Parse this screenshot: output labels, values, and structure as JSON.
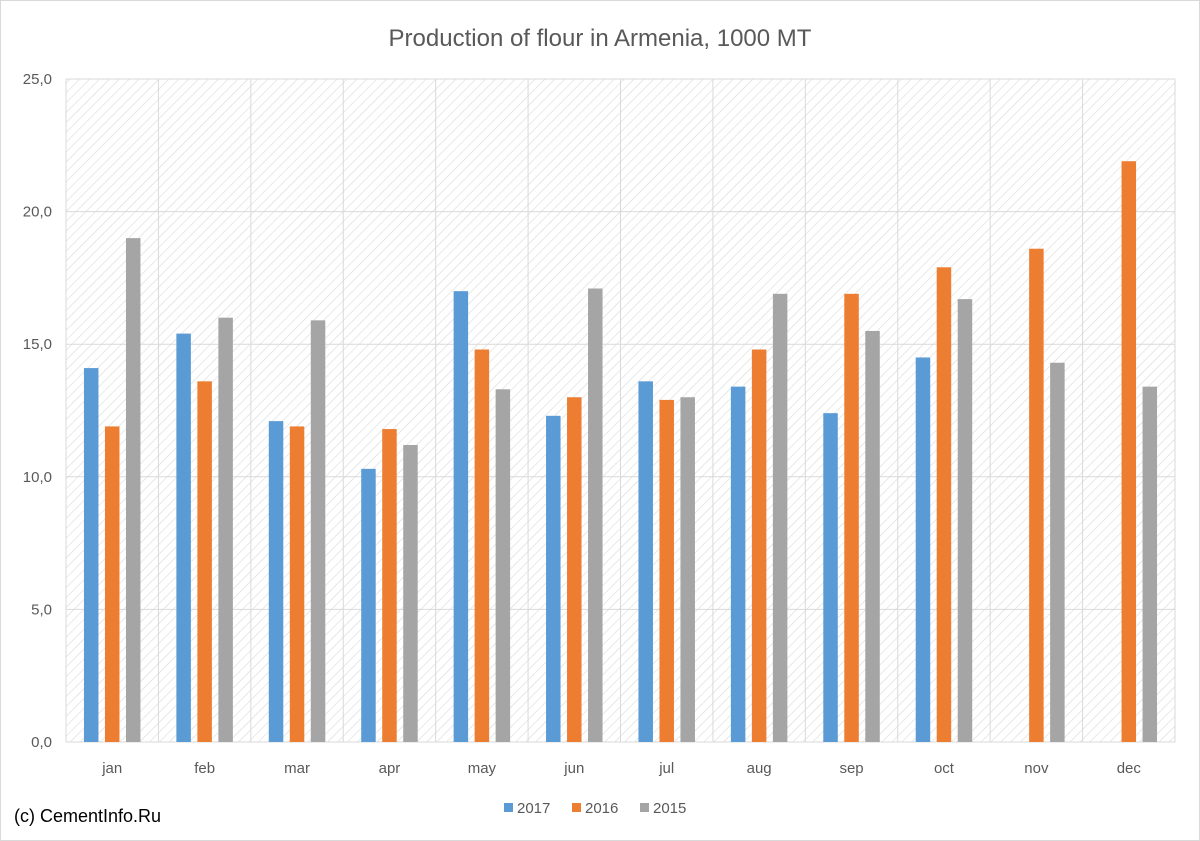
{
  "chart_data": {
    "type": "bar",
    "title": "Production of flour in Armenia, 1000 MT",
    "categories": [
      "jan",
      "feb",
      "mar",
      "apr",
      "may",
      "jun",
      "jul",
      "aug",
      "sep",
      "oct",
      "nov",
      "dec"
    ],
    "series": [
      {
        "name": "2017",
        "color": "#5B9BD5",
        "values": [
          14.1,
          15.4,
          12.1,
          10.3,
          17.0,
          12.3,
          13.6,
          13.4,
          12.4,
          14.5,
          null,
          null
        ]
      },
      {
        "name": "2016",
        "color": "#ED7D31",
        "values": [
          11.9,
          13.6,
          11.9,
          11.8,
          14.8,
          13.0,
          12.9,
          14.8,
          16.9,
          17.9,
          18.6,
          21.9
        ]
      },
      {
        "name": "2015",
        "color": "#A5A5A5",
        "values": [
          19.0,
          16.0,
          15.9,
          11.2,
          13.3,
          17.1,
          13.0,
          16.9,
          15.5,
          16.7,
          14.3,
          13.4
        ]
      }
    ],
    "ylim": [
      0,
      25
    ],
    "yticks": [
      "0,0",
      "5,0",
      "10,0",
      "15,0",
      "20,0",
      "25,0"
    ],
    "ytick_values": [
      0,
      5,
      10,
      15,
      20,
      25
    ],
    "grid": true,
    "legend_position": "bottom"
  },
  "credit": "(c) CementInfo.Ru"
}
